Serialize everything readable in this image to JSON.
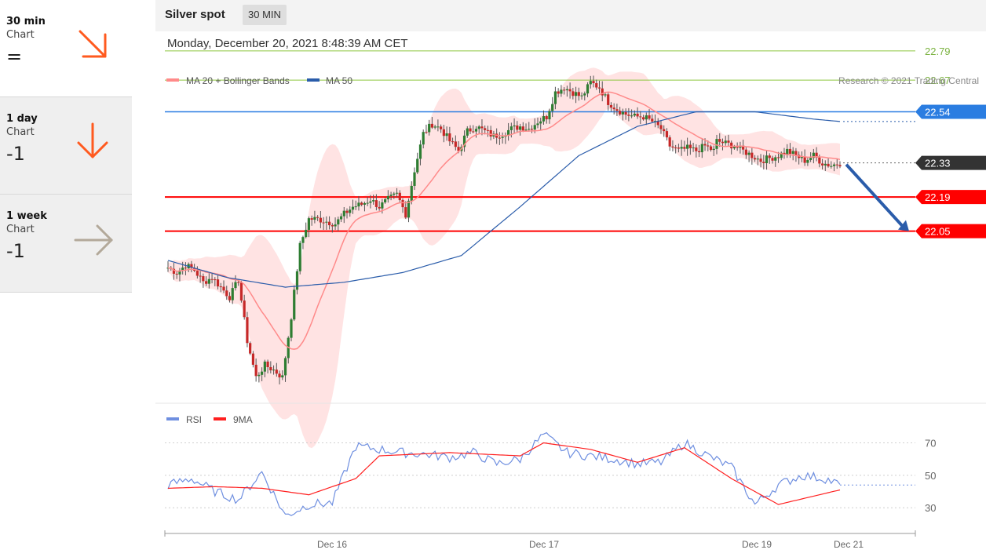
{
  "sidebar": {
    "cards": [
      {
        "period": "30 min",
        "sub": "Chart",
        "score": "=",
        "arrow": "down-right-arrow-icon",
        "color": "#ff5a1f"
      },
      {
        "period": "1 day",
        "sub": "Chart",
        "score": "-1",
        "arrow": "down-arrow-icon",
        "color": "#ff5a1f"
      },
      {
        "period": "1 week",
        "sub": "Chart",
        "score": "-1",
        "arrow": "right-arrow-icon",
        "color": "#b3a99a"
      }
    ]
  },
  "header": {
    "title": "Silver spot",
    "timeframe": "30 MIN"
  },
  "timestamp": "Monday, December 20, 2021 8:48:39 AM CET",
  "copyright": "Research © 2021 Trading Central",
  "colors": {
    "bollinger": "#ff8a8a",
    "ma50": "#2a5caa",
    "rsi": "#6f8fe0",
    "ma9": "#ff1f1f",
    "resistance": "#2a7de1",
    "support": "#ff0000",
    "target": "#8dc63f",
    "last": "#333333",
    "forecast": "#2a5caa"
  },
  "chart_data": [
    {
      "type": "line",
      "title": "Silver spot",
      "legend": [
        {
          "name": "MA 20 + Bollinger Bands",
          "color": "#ff8a8a"
        },
        {
          "name": "MA 50",
          "color": "#2a5caa"
        }
      ],
      "legend_position": "top-left",
      "x_ticks": [
        "Dec 16",
        "Dec 17",
        "Dec 19",
        "Dec 21"
      ],
      "levels": [
        {
          "label": "22.79",
          "value": 22.79,
          "kind": "target"
        },
        {
          "label": "22.67",
          "value": 22.67,
          "kind": "target"
        },
        {
          "label": "22.54",
          "value": 22.54,
          "kind": "resistance"
        },
        {
          "label": "22.33",
          "value": 22.33,
          "kind": "last"
        },
        {
          "label": "22.19",
          "value": 22.19,
          "kind": "support"
        },
        {
          "label": "22.05",
          "value": 22.05,
          "kind": "support"
        }
      ],
      "forecast": {
        "from": 22.33,
        "to": 22.05,
        "direction": "down"
      },
      "ylim": [
        21.35,
        22.87
      ],
      "series": [
        {
          "name": "Price (close)",
          "x": [
            0,
            3,
            6,
            9,
            12,
            15,
            18,
            21,
            24,
            27,
            30,
            33,
            36,
            39,
            42,
            45,
            48,
            51,
            54,
            57,
            60,
            63,
            66,
            69,
            72,
            75,
            78,
            81,
            84,
            87,
            90,
            93,
            96,
            99,
            102,
            105,
            108,
            111,
            114,
            117,
            120,
            123,
            126,
            129,
            132,
            135,
            138,
            141,
            144,
            147,
            150,
            153,
            156,
            159,
            162,
            165,
            168,
            171,
            174,
            177,
            180,
            183,
            186,
            187,
            190,
            193,
            196,
            199,
            202,
            205,
            208,
            211,
            214,
            217,
            220,
            223,
            226,
            229
          ],
          "y": [
            21.9,
            21.88,
            21.91,
            21.89,
            21.84,
            21.86,
            21.82,
            21.78,
            21.85,
            21.6,
            21.45,
            21.5,
            21.48,
            21.45,
            21.7,
            21.99,
            22.1,
            22.1,
            22.09,
            22.08,
            22.12,
            22.15,
            22.16,
            22.18,
            22.15,
            22.18,
            22.2,
            22.12,
            22.3,
            22.45,
            22.49,
            22.47,
            22.42,
            22.38,
            22.46,
            22.48,
            22.46,
            22.44,
            22.45,
            22.47,
            22.48,
            22.47,
            22.5,
            22.52,
            22.62,
            22.64,
            22.62,
            22.6,
            22.66,
            22.64,
            22.58,
            22.55,
            22.53,
            22.52,
            22.52,
            22.5,
            22.47,
            22.4,
            22.38,
            22.39,
            22.38,
            22.4,
            22.38,
            22.42,
            22.41,
            22.4,
            22.38,
            22.36,
            22.34,
            22.35,
            22.36,
            22.38,
            22.36,
            22.34,
            22.36,
            22.33,
            22.32,
            22.33
          ]
        },
        {
          "name": "MA 50",
          "x": [
            0,
            20,
            40,
            60,
            80,
            100,
            120,
            140,
            160,
            180,
            200,
            220,
            229
          ],
          "y": [
            21.93,
            21.86,
            21.82,
            21.84,
            21.88,
            21.95,
            22.15,
            22.36,
            22.48,
            22.54,
            22.54,
            22.51,
            22.5
          ]
        }
      ]
    },
    {
      "type": "line",
      "legend": [
        {
          "name": "RSI",
          "color": "#6f8fe0"
        },
        {
          "name": "9MA",
          "color": "#ff1f1f"
        }
      ],
      "legend_position": "top-left",
      "y_ticks": [
        70,
        50,
        30
      ],
      "x_ticks": [
        "Dec 16",
        "Dec 17",
        "Dec 19",
        "Dec 21"
      ],
      "ylim": [
        18,
        78
      ],
      "series": [
        {
          "name": "RSI",
          "x": [
            0,
            8,
            16,
            24,
            32,
            40,
            48,
            56,
            64,
            72,
            80,
            88,
            96,
            104,
            112,
            120,
            128,
            136,
            144,
            152,
            160,
            168,
            176,
            184,
            192,
            200,
            208,
            216,
            224,
            229
          ],
          "y": [
            44,
            48,
            40,
            35,
            52,
            25,
            32,
            33,
            68,
            66,
            64,
            63,
            61,
            64,
            57,
            60,
            75,
            64,
            62,
            60,
            57,
            58,
            70,
            62,
            55,
            32,
            44,
            50,
            48,
            44
          ]
        },
        {
          "name": "9MA",
          "x": [
            0,
            16,
            32,
            48,
            64,
            72,
            96,
            120,
            128,
            144,
            160,
            176,
            192,
            208,
            229
          ],
          "y": [
            42,
            43,
            42,
            38,
            48,
            62,
            64,
            62,
            70,
            66,
            58,
            67,
            48,
            32,
            41
          ]
        }
      ]
    }
  ]
}
